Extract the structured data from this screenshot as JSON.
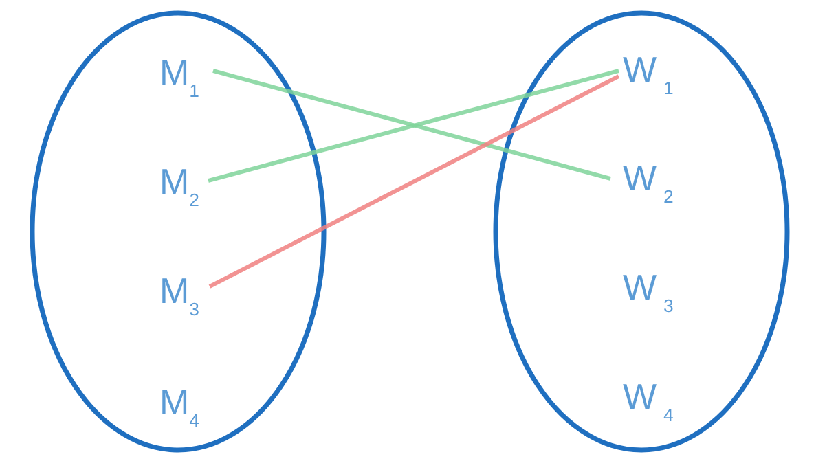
{
  "colors": {
    "ellipse_stroke": "#1f6fc0",
    "label_text": "#5b9bd5",
    "match_green": "#7fd49a",
    "match_red": "#f08080"
  },
  "left_set": {
    "nodes": [
      {
        "letter": "M",
        "sub": "1"
      },
      {
        "letter": "M",
        "sub": "2"
      },
      {
        "letter": "M",
        "sub": "3"
      },
      {
        "letter": "M",
        "sub": "4"
      }
    ]
  },
  "right_set": {
    "nodes": [
      {
        "letter": "W",
        "sub": "1"
      },
      {
        "letter": "W",
        "sub": "2"
      },
      {
        "letter": "W",
        "sub": "3"
      },
      {
        "letter": "W",
        "sub": "4"
      }
    ]
  },
  "edges": [
    {
      "from": "M1",
      "to": "W2",
      "color": "green"
    },
    {
      "from": "M2",
      "to": "W1",
      "color": "green"
    },
    {
      "from": "M3",
      "to": "W1",
      "color": "red"
    }
  ]
}
